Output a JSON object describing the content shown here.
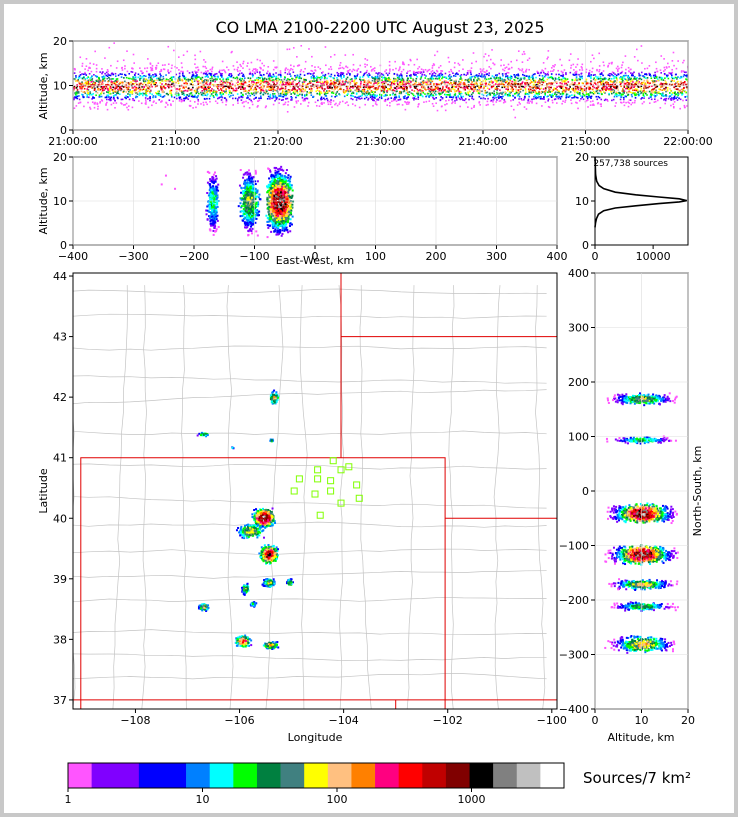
{
  "chart_data": [
    {
      "panel": "time-altitude",
      "type": "heatmap",
      "title": "CO LMA 2100-2200 UTC August 23, 2025",
      "xlabel": "",
      "ylabel": "Altitude, km",
      "xticks": [
        "21:00:00",
        "21:10:00",
        "21:20:00",
        "21:30:00",
        "21:40:00",
        "21:50:00",
        "22:00:00"
      ],
      "yticks": [
        0,
        10,
        20
      ],
      "xlim": [
        "21:00:00",
        "22:00:00"
      ],
      "ylim": [
        0,
        20
      ],
      "core_altitude_km": 10,
      "grid": true
    },
    {
      "panel": "east-west-altitude",
      "type": "heatmap",
      "xlabel": "East-West, km",
      "ylabel": "Altitude, km",
      "xticks": [
        -400,
        -300,
        -200,
        -100,
        0,
        100,
        200,
        300,
        400
      ],
      "yticks": [
        0,
        10,
        20
      ],
      "xlim": [
        -400,
        400
      ],
      "ylim": [
        0,
        20
      ],
      "clusters_x_km": [
        -170,
        -110,
        -60
      ]
    },
    {
      "panel": "altitude-histogram",
      "type": "line",
      "annotation": "257,738 sources",
      "xticks": [
        0,
        10000
      ],
      "yticks": [
        0,
        10,
        20
      ],
      "xlim": [
        0,
        16000
      ],
      "ylim": [
        0,
        20
      ],
      "x": [
        0,
        80,
        250,
        600,
        1500,
        3500,
        7000,
        11000,
        14500,
        15800,
        14500,
        11000,
        7000,
        3500,
        1500,
        700,
        300,
        100,
        0
      ],
      "y": [
        4,
        5,
        6,
        7,
        7.8,
        8.4,
        8.9,
        9.4,
        9.8,
        10.1,
        10.5,
        10.9,
        11.4,
        12,
        12.8,
        13.5,
        14.5,
        16,
        20
      ]
    },
    {
      "panel": "plan-view",
      "type": "heatmap",
      "xlabel": "Longitude",
      "ylabel": "Latitude",
      "xticks": [
        -108,
        -106,
        -104,
        -102,
        -100
      ],
      "yticks": [
        37,
        38,
        39,
        40,
        41,
        42,
        43,
        44
      ],
      "xlim": [
        -109.2,
        -99.9
      ],
      "ylim": [
        36.85,
        44.05
      ],
      "stations": [
        [
          -104.2,
          40.95
        ],
        [
          -103.9,
          40.85
        ],
        [
          -104.5,
          40.8
        ],
        [
          -104.05,
          40.8
        ],
        [
          -104.85,
          40.65
        ],
        [
          -104.5,
          40.65
        ],
        [
          -104.25,
          40.62
        ],
        [
          -103.75,
          40.55
        ],
        [
          -104.95,
          40.45
        ],
        [
          -104.55,
          40.4
        ],
        [
          -104.25,
          40.45
        ],
        [
          -103.7,
          40.33
        ],
        [
          -104.05,
          40.25
        ],
        [
          -104.45,
          40.05
        ]
      ]
    },
    {
      "panel": "altitude-north-south",
      "type": "heatmap",
      "xlabel": "Altitude, km",
      "ylabel": "North-South, km",
      "xticks": [
        0,
        10,
        20
      ],
      "yticks": [
        400,
        300,
        200,
        100,
        0,
        -100,
        -200,
        -300,
        -400
      ],
      "xlim": [
        0,
        20
      ],
      "ylim": [
        -400,
        400
      ],
      "clusters_y_km": [
        170,
        95,
        -40,
        -115,
        -170,
        -210,
        -280
      ]
    },
    {
      "panel": "colorbar",
      "type": "bar",
      "label": "Sources/7 km²",
      "ticks": [
        "1",
        "10",
        "100",
        "1000"
      ],
      "colors": [
        "#ff55ff",
        "#8000ff",
        "#8000ff",
        "#0000ff",
        "#0000ff",
        "#0080ff",
        "#00ffff",
        "#00ff00",
        "#008040",
        "#408080",
        "#ffff00",
        "#ffc080",
        "#ff8000",
        "#ff0080",
        "#ff0000",
        "#c00000",
        "#800000",
        "#000000",
        "#808080",
        "#c0c0c0",
        "#ffffff"
      ]
    }
  ]
}
